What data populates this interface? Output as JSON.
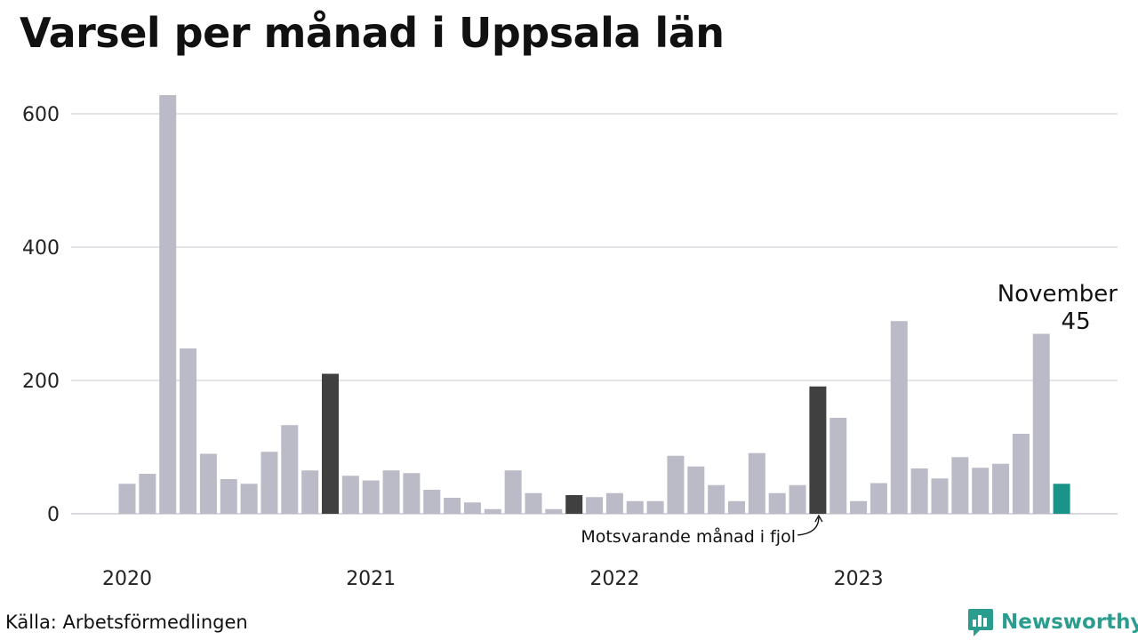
{
  "title": "Varsel per månad i Uppsala län",
  "source": "Källa: Arbetsförmedlingen",
  "brand": {
    "name": "Newsworthy",
    "icon": "newsworthy-logo-icon",
    "color": "#2a9d8f"
  },
  "chart_data": {
    "type": "bar",
    "title": "Varsel per månad i Uppsala län",
    "xlabel": "",
    "ylabel": "",
    "ylim": [
      0,
      600
    ],
    "yticks": [
      0,
      200,
      400,
      600
    ],
    "grid": true,
    "colors": {
      "default": "#bbbac7",
      "comparison": "#404040",
      "current": "#1a9388"
    },
    "year_labels": [
      {
        "label": "2020",
        "at_index": 0
      },
      {
        "label": "2021",
        "at_index": 12
      },
      {
        "label": "2022",
        "at_index": 24
      },
      {
        "label": "2023",
        "at_index": 36
      }
    ],
    "categories": [
      "2020-01",
      "2020-02",
      "2020-03",
      "2020-04",
      "2020-05",
      "2020-06",
      "2020-07",
      "2020-08",
      "2020-09",
      "2020-10",
      "2020-11",
      "2020-12",
      "2021-01",
      "2021-02",
      "2021-03",
      "2021-04",
      "2021-05",
      "2021-06",
      "2021-07",
      "2021-08",
      "2021-09",
      "2021-10",
      "2021-11",
      "2021-12",
      "2022-01",
      "2022-02",
      "2022-03",
      "2022-04",
      "2022-05",
      "2022-06",
      "2022-07",
      "2022-08",
      "2022-09",
      "2022-10",
      "2022-11",
      "2022-12",
      "2023-01",
      "2023-02",
      "2023-03",
      "2023-04",
      "2023-05",
      "2023-06",
      "2023-07",
      "2023-08",
      "2023-09",
      "2023-10",
      "2023-11"
    ],
    "values": [
      45,
      60,
      628,
      248,
      90,
      52,
      45,
      93,
      133,
      65,
      210,
      57,
      50,
      65,
      61,
      36,
      24,
      17,
      7,
      65,
      31,
      7,
      28,
      25,
      31,
      19,
      19,
      87,
      71,
      43,
      19,
      91,
      31,
      43,
      191,
      144,
      19,
      46,
      289,
      68,
      53,
      85,
      69,
      75,
      120,
      270,
      45
    ],
    "highlight_comparison": [
      10,
      22,
      34
    ],
    "highlight_current": 46,
    "annotations": {
      "current": {
        "label": "November",
        "value_label": "45"
      },
      "comparison": {
        "label": "Motsvarande månad i fjol"
      }
    }
  }
}
